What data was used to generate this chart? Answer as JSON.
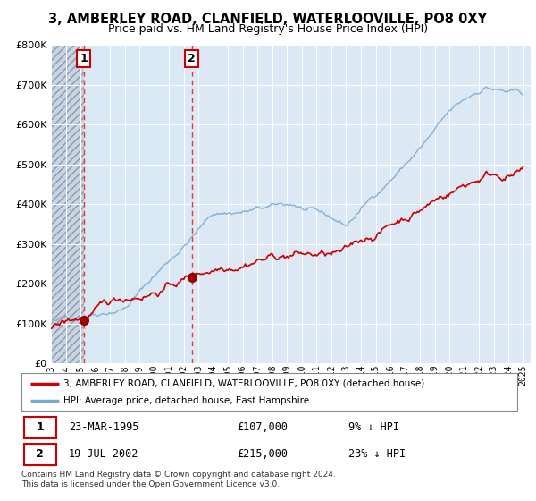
{
  "title": "3, AMBERLEY ROAD, CLANFIELD, WATERLOOVILLE, PO8 0XY",
  "subtitle": "Price paid vs. HM Land Registry's House Price Index (HPI)",
  "title_fontsize": 10.5,
  "subtitle_fontsize": 9,
  "bg_color": "#ffffff",
  "plot_bg_color": "#dce9f5",
  "hatch_bg_color": "#c8d4e4",
  "between_bg_color": "#d8e6f4",
  "grid_color": "#ffffff",
  "red_line_color": "#cc0000",
  "blue_line_color": "#7aaad0",
  "marker_color": "#990000",
  "vline_color": "#ee3333",
  "label_box_color": "#cc0000",
  "ylim": [
    0,
    800000
  ],
  "yticks": [
    0,
    100000,
    200000,
    300000,
    400000,
    500000,
    600000,
    700000,
    800000
  ],
  "ytick_labels": [
    "£0",
    "£100K",
    "£200K",
    "£300K",
    "£400K",
    "£500K",
    "£600K",
    "£700K",
    "£800K"
  ],
  "purchase1_date": 1995.22,
  "purchase1_price": 107000,
  "purchase2_date": 2002.54,
  "purchase2_price": 215000,
  "legend_entry1": "3, AMBERLEY ROAD, CLANFIELD, WATERLOOVILLE, PO8 0XY (detached house)",
  "legend_entry2": "HPI: Average price, detached house, East Hampshire",
  "footnote": "Contains HM Land Registry data © Crown copyright and database right 2024.\nThis data is licensed under the Open Government Licence v3.0.",
  "xtick_years": [
    1993,
    1994,
    1995,
    1996,
    1997,
    1998,
    1999,
    2000,
    2001,
    2002,
    2003,
    2004,
    2005,
    2006,
    2007,
    2008,
    2009,
    2010,
    2011,
    2012,
    2013,
    2014,
    2015,
    2016,
    2017,
    2018,
    2019,
    2020,
    2021,
    2022,
    2023,
    2024,
    2025
  ]
}
